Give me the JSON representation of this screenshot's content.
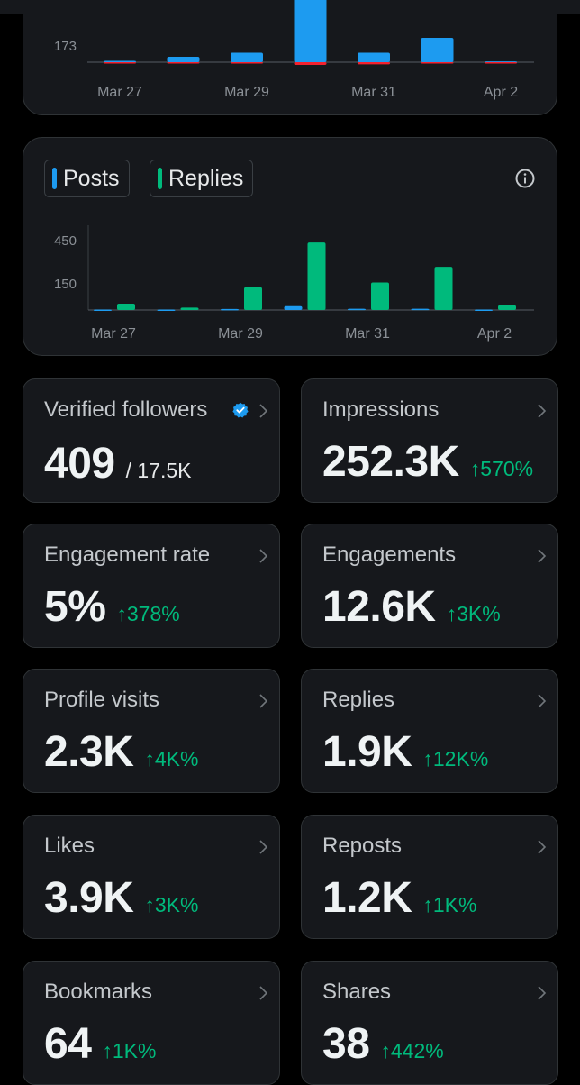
{
  "top_chart": {
    "y_tick": "173",
    "x_labels": [
      "Mar 27",
      "Mar 29",
      "Mar 31",
      "Apr 2"
    ],
    "colors": {
      "positive": "#1d9bf0",
      "negative": "#f4212e"
    },
    "chart_data": {
      "type": "bar",
      "categories": [
        "Mar 27",
        "Mar 28",
        "Mar 29",
        "Mar 30",
        "Mar 31",
        "Apr 1",
        "Apr 2"
      ],
      "series": [
        {
          "values": [
            5,
            20,
            35,
            365,
            35,
            90,
            3
          ]
        },
        {
          "values": [
            -1,
            -2,
            -6,
            -55,
            -45,
            -18,
            -5
          ]
        }
      ]
    }
  },
  "activity_chart": {
    "legend": [
      {
        "label": "Posts",
        "color": "#1d9bf0"
      },
      {
        "label": "Replies",
        "color": "#00ba7c"
      }
    ],
    "info_icon": "info-icon",
    "y_ticks": [
      "450",
      "150"
    ],
    "x_labels": [
      "Mar 27",
      "Mar 29",
      "Mar 31",
      "Apr 2"
    ],
    "chart_data": {
      "type": "bar",
      "categories": [
        "Mar 27",
        "Mar 28",
        "Mar 29",
        "Mar 30",
        "Mar 31",
        "Apr 1",
        "Apr 2"
      ],
      "series": [
        {
          "name": "Posts",
          "values": [
            5,
            5,
            12,
            45,
            15,
            15,
            5
          ]
        },
        {
          "name": "Replies",
          "values": [
            40,
            15,
            145,
            430,
            175,
            275,
            30
          ]
        }
      ],
      "ylim": [
        0,
        500
      ]
    }
  },
  "stats": [
    {
      "label": "Verified followers",
      "value": "409",
      "sub": "/ 17.5K",
      "change": "",
      "verified_icon": "verified-badge-icon"
    },
    {
      "label": "Impressions",
      "value": "252.3K",
      "change": "↑570%"
    },
    {
      "label": "Engagement rate",
      "value": "5%",
      "change": "↑378%"
    },
    {
      "label": "Engagements",
      "value": "12.6K",
      "change": "↑3K%"
    },
    {
      "label": "Profile visits",
      "value": "2.3K",
      "change": "↑4K%"
    },
    {
      "label": "Replies",
      "value": "1.9K",
      "change": "↑12K%"
    },
    {
      "label": "Likes",
      "value": "3.9K",
      "change": "↑3K%"
    },
    {
      "label": "Reposts",
      "value": "1.2K",
      "change": "↑1K%"
    },
    {
      "label": "Bookmarks",
      "value": "64",
      "change": "↑1K%"
    },
    {
      "label": "Shares",
      "value": "38",
      "change": "↑442%"
    }
  ]
}
